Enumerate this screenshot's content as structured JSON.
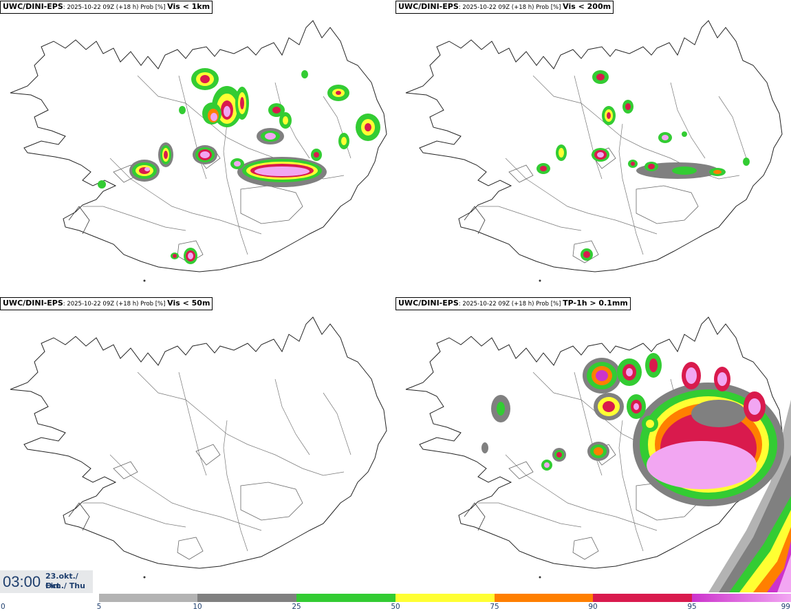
{
  "panels": [
    {
      "source": "UWC/DINI-EPS",
      "meta": ": 2025-10-22 09Z (+18 h) Prob [%] ",
      "variable": "Vis < 1km"
    },
    {
      "source": "UWC/DINI-EPS",
      "meta": ": 2025-10-22 09Z (+18 h) Prob [%] ",
      "variable": "Vis < 200m"
    },
    {
      "source": "UWC/DINI-EPS",
      "meta": ": 2025-10-22 09Z (+18 h) Prob [%] ",
      "variable": "Vis < 50m"
    },
    {
      "source": "UWC/DINI-EPS",
      "meta": ": 2025-10-22 09Z (+18 h) Prob [%] ",
      "variable": "TP-1h > 0.1mm"
    }
  ],
  "valid_time": {
    "time": "03:00",
    "date": "23.okt./ Oct",
    "day": "Fim./ Thu"
  },
  "legend": {
    "ticks": [
      "0",
      "5",
      "10",
      "25",
      "50",
      "75",
      "90",
      "95",
      "99"
    ],
    "colors": {
      "5-10": "#b3b3b3",
      "10-25": "#808080",
      "25-50": "#33cc33",
      "50-75": "#ffff33",
      "75-90": "#ff7f00",
      "90-95": "#d91a4d",
      "95-99": "#cc33cc",
      "99+": "#f2a6f2"
    }
  }
}
